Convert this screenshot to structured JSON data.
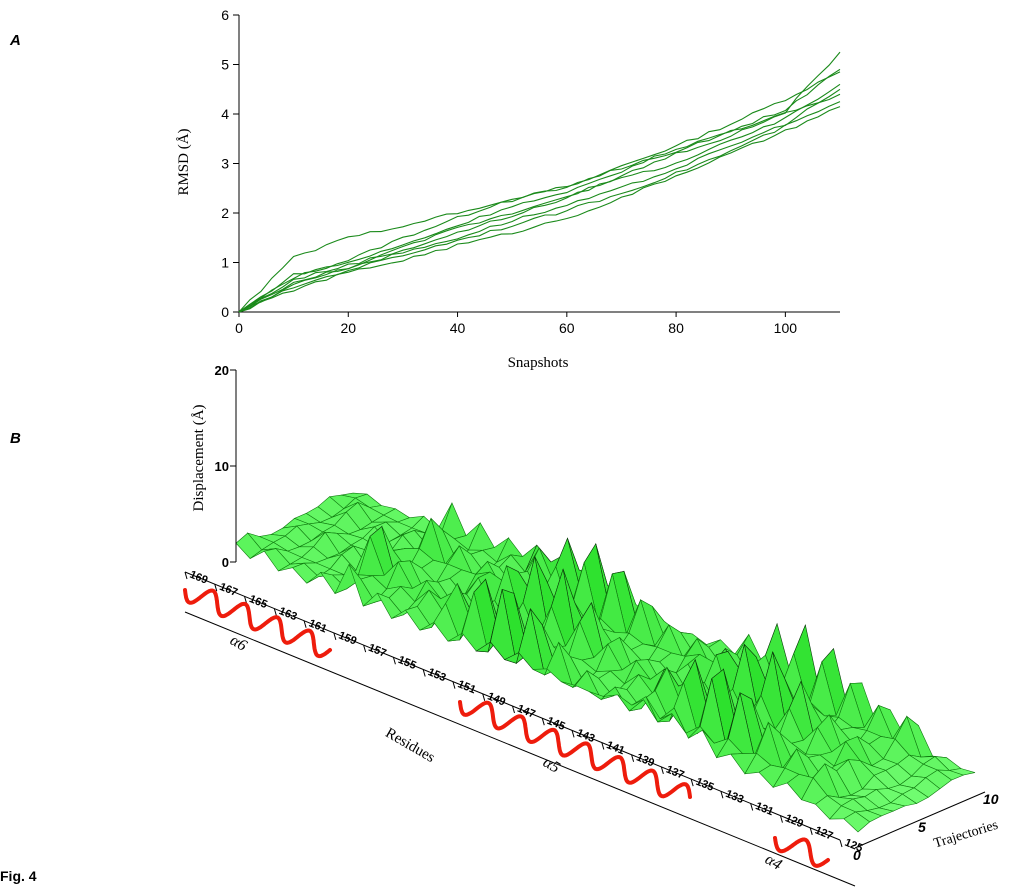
{
  "figure_label": "Fig. 4",
  "panel_a_label": "A",
  "panel_b_label": "B",
  "colors": {
    "line": "#1a8a1a",
    "surface": "#22bb22",
    "helix": "#ee1c0c"
  },
  "chart_data": [
    {
      "type": "line",
      "xlabel": "Snapshots",
      "ylabel": "RMSD (Å)",
      "xlim": [
        0,
        110
      ],
      "ylim": [
        0,
        6
      ],
      "xticks": [
        "0",
        "20",
        "40",
        "60",
        "80",
        "100"
      ],
      "yticks": [
        "0",
        "1",
        "2",
        "3",
        "4",
        "5",
        "6"
      ],
      "x": [
        0,
        10,
        20,
        30,
        40,
        50,
        60,
        70,
        80,
        90,
        100,
        110
      ],
      "series": [
        {
          "values": [
            0,
            0.7,
            1.05,
            1.5,
            1.9,
            2.3,
            2.5,
            2.95,
            3.35,
            3.8,
            4.3,
            4.85
          ]
        },
        {
          "values": [
            0,
            0.75,
            1.0,
            1.35,
            1.75,
            2.15,
            2.4,
            2.85,
            3.3,
            3.65,
            4.1,
            4.9
          ]
        },
        {
          "values": [
            0,
            0.65,
            0.95,
            1.25,
            1.6,
            1.95,
            2.3,
            2.75,
            3.2,
            3.55,
            4.05,
            5.25
          ]
        },
        {
          "values": [
            0,
            0.6,
            0.9,
            1.2,
            1.5,
            1.85,
            2.15,
            2.5,
            2.9,
            3.35,
            3.8,
            4.5
          ]
        },
        {
          "values": [
            0,
            0.5,
            0.85,
            1.15,
            1.45,
            1.75,
            2.05,
            2.4,
            2.8,
            3.25,
            3.75,
            4.25
          ]
        },
        {
          "values": [
            0,
            0.45,
            0.8,
            1.05,
            1.35,
            1.6,
            1.9,
            2.3,
            2.75,
            3.2,
            3.65,
            4.15
          ]
        },
        {
          "values": [
            0,
            1.1,
            1.5,
            1.75,
            2.0,
            2.25,
            2.55,
            2.9,
            3.25,
            3.65,
            4.0,
            4.4
          ]
        },
        {
          "values": [
            0,
            0.55,
            0.9,
            1.3,
            1.7,
            2.0,
            2.35,
            2.7,
            3.0,
            3.45,
            3.9,
            4.6
          ]
        }
      ]
    },
    {
      "type": "surface",
      "zlabel": "Displacement (Å)",
      "xlabel": "Residues",
      "ylabel": "Trajectories",
      "zticks": [
        "0",
        "10",
        "20"
      ],
      "yticks": [
        "0",
        "5",
        "10"
      ],
      "residue_ticks": [
        "169",
        "167",
        "165",
        "163",
        "161",
        "159",
        "157",
        "155",
        "153",
        "151",
        "149",
        "147",
        "145",
        "143",
        "141",
        "139",
        "137",
        "135",
        "133",
        "131",
        "129",
        "127",
        "125"
      ],
      "helices": [
        "α6",
        "α5",
        "α4"
      ],
      "zlim": [
        0,
        20
      ]
    }
  ]
}
